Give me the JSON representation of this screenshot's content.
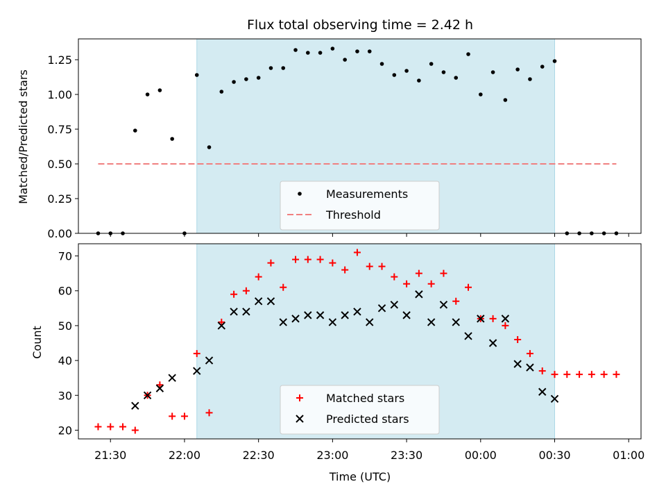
{
  "title": "Flux total observing time = 2.42 h",
  "colors": {
    "observing_span": "#d4ebf2",
    "measurement": "#000000",
    "threshold": "#f08080",
    "matched": "#ff0000",
    "predicted": "#000000"
  },
  "chart_data": [
    {
      "type": "scatter",
      "panel": "top",
      "ylabel": "Matched/Predicted stars",
      "ylim": [
        0.0,
        1.4
      ],
      "yticks": [
        "0.00",
        "0.25",
        "0.50",
        "0.75",
        "1.00",
        "1.25"
      ],
      "xlim": [
        "21:17",
        "01:05"
      ],
      "x_axis": "time (UTC), times after midnight belong to the following day",
      "shaded_interval": [
        "22:05",
        "00:30"
      ],
      "legend": {
        "placement": "lower-center",
        "entries": [
          "Measurements",
          "Threshold"
        ]
      },
      "series": [
        {
          "name": "Measurements",
          "marker": "dot",
          "points": [
            [
              "21:25",
              0.0
            ],
            [
              "21:30",
              0.0
            ],
            [
              "21:35",
              0.0
            ],
            [
              "21:40",
              0.74
            ],
            [
              "21:45",
              1.0
            ],
            [
              "21:50",
              1.03
            ],
            [
              "21:55",
              0.68
            ],
            [
              "22:00",
              0.0
            ],
            [
              "22:05",
              1.14
            ],
            [
              "22:10",
              0.62
            ],
            [
              "22:15",
              1.02
            ],
            [
              "22:20",
              1.09
            ],
            [
              "22:25",
              1.11
            ],
            [
              "22:30",
              1.12
            ],
            [
              "22:35",
              1.19
            ],
            [
              "22:40",
              1.19
            ],
            [
              "22:45",
              1.32
            ],
            [
              "22:50",
              1.3
            ],
            [
              "22:55",
              1.3
            ],
            [
              "23:00",
              1.33
            ],
            [
              "23:05",
              1.25
            ],
            [
              "23:10",
              1.31
            ],
            [
              "23:15",
              1.31
            ],
            [
              "23:20",
              1.22
            ],
            [
              "23:25",
              1.14
            ],
            [
              "23:30",
              1.17
            ],
            [
              "23:35",
              1.1
            ],
            [
              "23:40",
              1.22
            ],
            [
              "23:45",
              1.16
            ],
            [
              "23:50",
              1.12
            ],
            [
              "23:55",
              1.29
            ],
            [
              "00:00",
              1.0
            ],
            [
              "00:05",
              1.16
            ],
            [
              "00:10",
              0.96
            ],
            [
              "00:15",
              1.18
            ],
            [
              "00:20",
              1.11
            ],
            [
              "00:25",
              1.2
            ],
            [
              "00:30",
              1.24
            ],
            [
              "00:35",
              0.0
            ],
            [
              "00:40",
              0.0
            ],
            [
              "00:45",
              0.0
            ],
            [
              "00:50",
              0.0
            ],
            [
              "00:55",
              0.0
            ]
          ]
        },
        {
          "name": "Threshold",
          "marker": "dashed-line",
          "points": [
            [
              "21:25",
              0.5
            ],
            [
              "00:55",
              0.5
            ]
          ]
        }
      ]
    },
    {
      "type": "scatter",
      "panel": "bottom",
      "xlabel": "Time (UTC)",
      "ylabel": "Count",
      "ylim": [
        17.5,
        73.5
      ],
      "yticks": [
        "20",
        "30",
        "40",
        "50",
        "60",
        "70"
      ],
      "xlim": [
        "21:17",
        "01:05"
      ],
      "xticks": [
        "21:30",
        "22:00",
        "22:30",
        "23:00",
        "23:30",
        "00:00",
        "00:30",
        "01:00"
      ],
      "shaded_interval": [
        "22:05",
        "00:30"
      ],
      "legend": {
        "placement": "lower-center",
        "entries": [
          "Matched stars",
          "Predicted stars"
        ]
      },
      "series": [
        {
          "name": "Matched stars",
          "marker": "plus",
          "points": [
            [
              "21:25",
              21
            ],
            [
              "21:30",
              21
            ],
            [
              "21:35",
              21
            ],
            [
              "21:40",
              20
            ],
            [
              "21:45",
              30
            ],
            [
              "21:50",
              33
            ],
            [
              "21:55",
              24
            ],
            [
              "22:00",
              24
            ],
            [
              "22:05",
              42
            ],
            [
              "22:10",
              25
            ],
            [
              "22:15",
              51
            ],
            [
              "22:20",
              59
            ],
            [
              "22:25",
              60
            ],
            [
              "22:30",
              64
            ],
            [
              "22:35",
              68
            ],
            [
              "22:40",
              61
            ],
            [
              "22:45",
              69
            ],
            [
              "22:50",
              69
            ],
            [
              "22:55",
              69
            ],
            [
              "23:00",
              68
            ],
            [
              "23:05",
              66
            ],
            [
              "23:10",
              71
            ],
            [
              "23:15",
              67
            ],
            [
              "23:20",
              67
            ],
            [
              "23:25",
              64
            ],
            [
              "23:30",
              62
            ],
            [
              "23:35",
              65
            ],
            [
              "23:40",
              62
            ],
            [
              "23:45",
              65
            ],
            [
              "23:50",
              57
            ],
            [
              "23:55",
              61
            ],
            [
              "00:00",
              52
            ],
            [
              "00:05",
              52
            ],
            [
              "00:10",
              50
            ],
            [
              "00:15",
              46
            ],
            [
              "00:20",
              42
            ],
            [
              "00:25",
              37
            ],
            [
              "00:30",
              36
            ],
            [
              "00:35",
              36
            ],
            [
              "00:40",
              36
            ],
            [
              "00:45",
              36
            ],
            [
              "00:50",
              36
            ],
            [
              "00:55",
              36
            ]
          ]
        },
        {
          "name": "Predicted stars",
          "marker": "x",
          "points": [
            [
              "21:40",
              27
            ],
            [
              "21:45",
              30
            ],
            [
              "21:50",
              32
            ],
            [
              "21:55",
              35
            ],
            [
              "22:05",
              37
            ],
            [
              "22:10",
              40
            ],
            [
              "22:15",
              50
            ],
            [
              "22:20",
              54
            ],
            [
              "22:25",
              54
            ],
            [
              "22:30",
              57
            ],
            [
              "22:35",
              57
            ],
            [
              "22:40",
              51
            ],
            [
              "22:45",
              52
            ],
            [
              "22:50",
              53
            ],
            [
              "22:55",
              53
            ],
            [
              "23:00",
              51
            ],
            [
              "23:05",
              53
            ],
            [
              "23:10",
              54
            ],
            [
              "23:15",
              51
            ],
            [
              "23:20",
              55
            ],
            [
              "23:25",
              56
            ],
            [
              "23:30",
              53
            ],
            [
              "23:35",
              59
            ],
            [
              "23:40",
              51
            ],
            [
              "23:45",
              56
            ],
            [
              "23:50",
              51
            ],
            [
              "23:55",
              47
            ],
            [
              "00:00",
              52
            ],
            [
              "00:05",
              45
            ],
            [
              "00:10",
              52
            ],
            [
              "00:15",
              39
            ],
            [
              "00:20",
              38
            ],
            [
              "00:25",
              31
            ],
            [
              "00:30",
              29
            ]
          ]
        }
      ]
    }
  ]
}
